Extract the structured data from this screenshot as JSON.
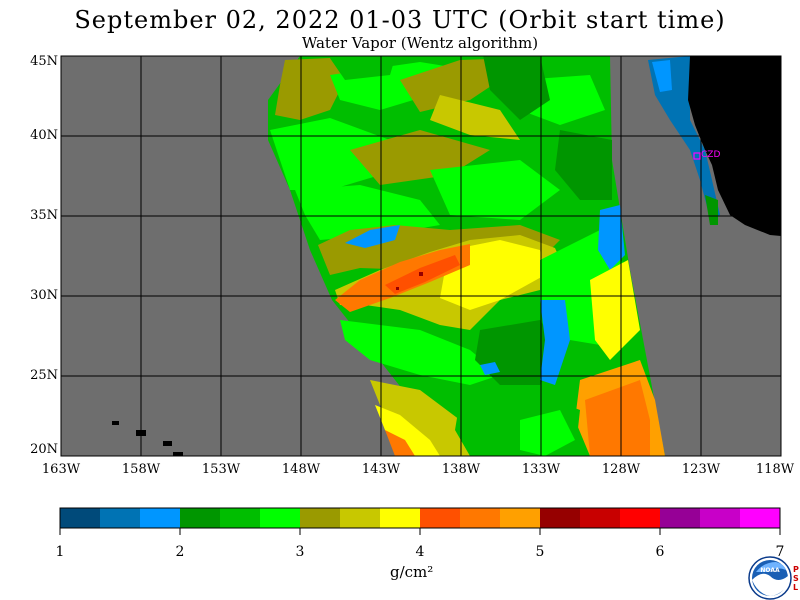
{
  "title": "September 02, 2022  01-03 UTC  (Orbit start time)",
  "subtitle": "Water Vapor (Wentz algorithm)",
  "map": {
    "lat_labels": [
      {
        "label": "45N",
        "lat": 45
      },
      {
        "label": "40N",
        "lat": 40
      },
      {
        "label": "35N",
        "lat": 35
      },
      {
        "label": "30N",
        "lat": 30
      },
      {
        "label": "25N",
        "lat": 25
      },
      {
        "label": "20N",
        "lat": 20
      }
    ],
    "lon_labels": [
      {
        "label": "163W",
        "lon": -163
      },
      {
        "label": "158W",
        "lon": -158
      },
      {
        "label": "153W",
        "lon": -153
      },
      {
        "label": "148W",
        "lon": -148
      },
      {
        "label": "143W",
        "lon": -143
      },
      {
        "label": "138W",
        "lon": -138
      },
      {
        "label": "133W",
        "lon": -133
      },
      {
        "label": "128W",
        "lon": -128
      },
      {
        "label": "123W",
        "lon": -123
      },
      {
        "label": "118W",
        "lon": -118
      }
    ],
    "lon_range": [
      -163,
      -118
    ],
    "lat_range": [
      20,
      45
    ],
    "colors": {
      "no_data": "#6e6e6e",
      "land": "#000000",
      "grid": "#000000",
      "marker": "#ff00ff"
    },
    "station_label": "CZD"
  },
  "colorbar": {
    "colors": [
      "#004a7a",
      "#0073b4",
      "#0096ff",
      "#009600",
      "#00be00",
      "#00ff00",
      "#9a9a00",
      "#c8c800",
      "#ffff00",
      "#ff5000",
      "#ff7800",
      "#ffa000",
      "#960000",
      "#c80000",
      "#ff0000",
      "#960096",
      "#c800c8",
      "#ff00ff"
    ],
    "tick_labels": [
      "1",
      "2",
      "3",
      "4",
      "5",
      "6",
      "7"
    ],
    "units": "g/cm²"
  },
  "logo": {
    "name": "NOAA",
    "side_text": "PSL"
  }
}
